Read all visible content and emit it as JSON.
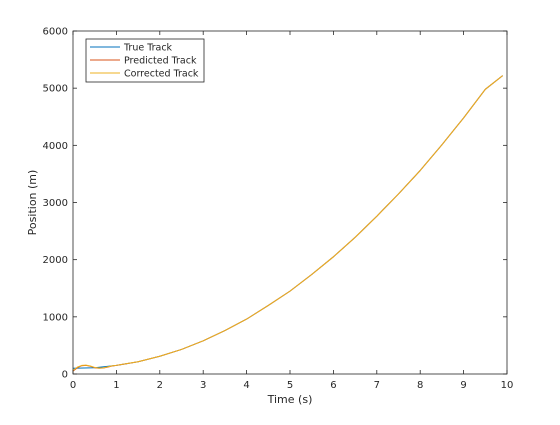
{
  "chart_data": {
    "type": "line",
    "title": "",
    "xlabel": "Time (s)",
    "ylabel": "Position (m)",
    "xlim": [
      0,
      10
    ],
    "ylim": [
      0,
      6000
    ],
    "xticks": [
      0,
      1,
      2,
      3,
      4,
      5,
      6,
      7,
      8,
      9,
      10
    ],
    "yticks": [
      0,
      1000,
      2000,
      3000,
      4000,
      5000,
      6000
    ],
    "grid": false,
    "legend_position": "top-left",
    "series": [
      {
        "name": "True Track",
        "color": "#0072bd",
        "x": [
          0,
          0.5,
          1,
          1.5,
          2,
          2.5,
          3,
          3.5,
          4,
          4.5,
          5,
          5.5,
          6,
          6.5,
          7,
          7.5,
          8,
          8.5,
          9,
          9.5,
          9.9
        ],
        "y": [
          100,
          110,
          150,
          215,
          310,
          430,
          580,
          760,
          960,
          1200,
          1450,
          1740,
          2050,
          2390,
          2760,
          3150,
          3560,
          4010,
          4480,
          4980,
          5220
        ]
      },
      {
        "name": "Predicted Track",
        "color": "#d95319",
        "x": [
          0,
          0.05,
          0.1,
          0.2,
          0.3,
          0.4,
          0.5,
          0.6,
          0.7,
          0.8,
          0.9,
          1,
          1.5,
          2,
          2.5,
          3,
          3.5,
          4,
          4.5,
          5,
          5.5,
          6,
          6.5,
          7,
          7.5,
          8,
          8.5,
          9,
          9.5,
          9.9
        ],
        "y": [
          50,
          80,
          110,
          145,
          150,
          135,
          110,
          100,
          105,
          120,
          140,
          150,
          215,
          310,
          430,
          580,
          760,
          960,
          1200,
          1450,
          1740,
          2050,
          2390,
          2760,
          3150,
          3560,
          4010,
          4480,
          4980,
          5220
        ]
      },
      {
        "name": "Corrected Track",
        "color": "#edb120",
        "x": [
          0,
          0.05,
          0.1,
          0.2,
          0.3,
          0.4,
          0.5,
          0.6,
          0.7,
          0.8,
          0.9,
          1,
          1.5,
          2,
          2.5,
          3,
          3.5,
          4,
          4.5,
          5,
          5.5,
          6,
          6.5,
          7,
          7.5,
          8,
          8.5,
          9,
          9.5,
          9.9
        ],
        "y": [
          60,
          90,
          120,
          150,
          155,
          140,
          115,
          102,
          108,
          125,
          142,
          152,
          215,
          310,
          430,
          580,
          760,
          960,
          1200,
          1450,
          1740,
          2050,
          2390,
          2760,
          3150,
          3560,
          4010,
          4480,
          4980,
          5220
        ]
      }
    ]
  }
}
